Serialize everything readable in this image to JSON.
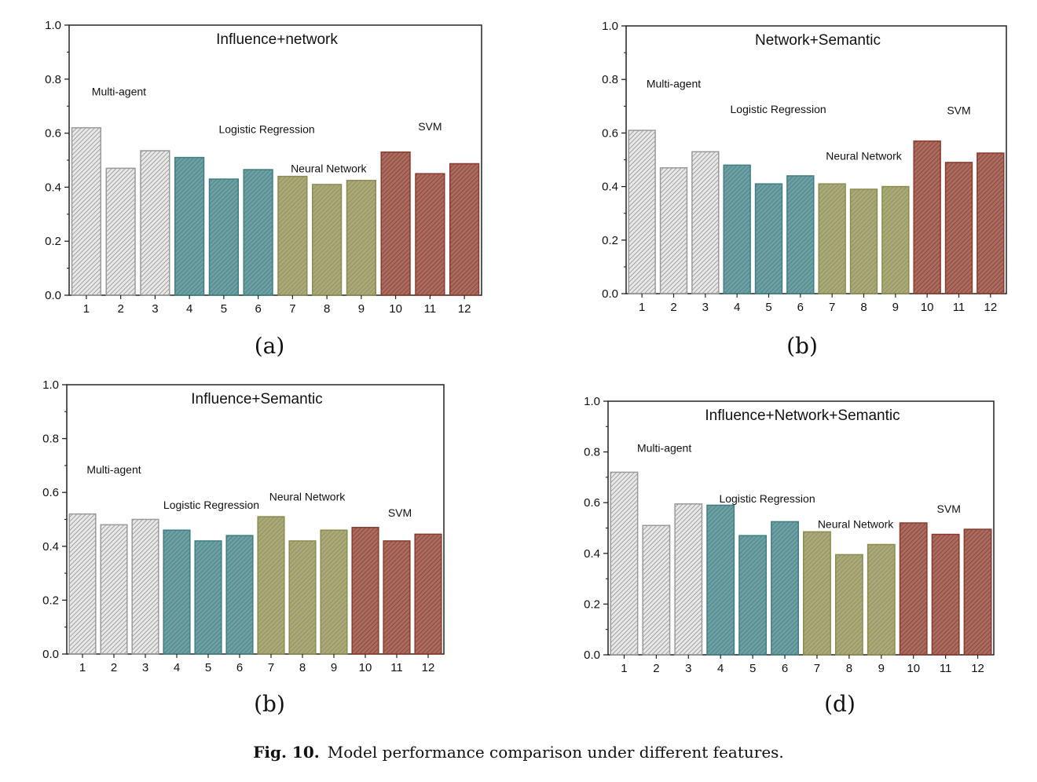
{
  "colors": {
    "Multi-agent": "#bdbdbd",
    "Logistic Regression": "#3e7f83",
    "Neural Network": "#8c8c4e",
    "SVM": "#8b3a2c"
  },
  "caption": {
    "label": "Fig. 10.",
    "text": "Model performance comparison under different features."
  },
  "chart_data": [
    {
      "type": "bar",
      "title": "Influence+network",
      "panel_label": "(a)",
      "categories": [
        "1",
        "2",
        "3",
        "4",
        "5",
        "6",
        "7",
        "8",
        "9",
        "10",
        "11",
        "12"
      ],
      "values": [
        0.62,
        0.47,
        0.535,
        0.51,
        0.43,
        0.465,
        0.44,
        0.41,
        0.425,
        0.53,
        0.45,
        0.487
      ],
      "groups": [
        "Multi-agent",
        "Multi-agent",
        "Multi-agent",
        "Logistic Regression",
        "Logistic Regression",
        "Logistic Regression",
        "Neural Network",
        "Neural Network",
        "Neural Network",
        "SVM",
        "SVM",
        "SVM"
      ],
      "ylim": [
        0,
        1.0
      ],
      "yticks": [
        "0.0",
        "0.2",
        "0.4",
        "0.6",
        "0.8",
        "1.0"
      ],
      "annotations": [
        {
          "text": "Multi-agent",
          "x": 1.95,
          "y": 0.74
        },
        {
          "text": "Logistic Regression",
          "x": 6.25,
          "y": 0.6
        },
        {
          "text": "Neural Network",
          "x": 8.05,
          "y": 0.455
        },
        {
          "text": "SVM",
          "x": 11.0,
          "y": 0.61
        }
      ]
    },
    {
      "type": "bar",
      "title": "Network+Semantic",
      "panel_label": "(b)",
      "categories": [
        "1",
        "2",
        "3",
        "4",
        "5",
        "6",
        "7",
        "8",
        "9",
        "10",
        "11",
        "12"
      ],
      "values": [
        0.61,
        0.47,
        0.53,
        0.48,
        0.41,
        0.44,
        0.41,
        0.39,
        0.4,
        0.57,
        0.49,
        0.525
      ],
      "groups": [
        "Multi-agent",
        "Multi-agent",
        "Multi-agent",
        "Logistic Regression",
        "Logistic Regression",
        "Logistic Regression",
        "Neural Network",
        "Neural Network",
        "Neural Network",
        "SVM",
        "SVM",
        "SVM"
      ],
      "ylim": [
        0,
        1.0
      ],
      "yticks": [
        "0.0",
        "0.2",
        "0.4",
        "0.6",
        "0.8",
        "1.0"
      ],
      "annotations": [
        {
          "text": "Multi-agent",
          "x": 2.0,
          "y": 0.77
        },
        {
          "text": "Logistic Regression",
          "x": 5.3,
          "y": 0.675
        },
        {
          "text": "Neural Network",
          "x": 8.0,
          "y": 0.5
        },
        {
          "text": "SVM",
          "x": 11.0,
          "y": 0.67
        }
      ]
    },
    {
      "type": "bar",
      "title": "Influence+Semantic",
      "panel_label": "(b)",
      "categories": [
        "1",
        "2",
        "3",
        "4",
        "5",
        "6",
        "7",
        "8",
        "9",
        "10",
        "11",
        "12"
      ],
      "values": [
        0.52,
        0.48,
        0.5,
        0.46,
        0.42,
        0.44,
        0.51,
        0.42,
        0.46,
        0.47,
        0.42,
        0.445
      ],
      "groups": [
        "Multi-agent",
        "Multi-agent",
        "Multi-agent",
        "Logistic Regression",
        "Logistic Regression",
        "Logistic Regression",
        "Neural Network",
        "Neural Network",
        "Neural Network",
        "SVM",
        "SVM",
        "SVM"
      ],
      "ylim": [
        0,
        1.0
      ],
      "yticks": [
        "0.0",
        "0.2",
        "0.4",
        "0.6",
        "0.8",
        "1.0"
      ],
      "annotations": [
        {
          "text": "Multi-agent",
          "x": 2.0,
          "y": 0.67
        },
        {
          "text": "Logistic Regression",
          "x": 5.1,
          "y": 0.54
        },
        {
          "text": "Neural Network",
          "x": 8.15,
          "y": 0.57
        },
        {
          "text": "SVM",
          "x": 11.1,
          "y": 0.51
        }
      ]
    },
    {
      "type": "bar",
      "title": "Influence+Network+Semantic",
      "panel_label": "(d)",
      "categories": [
        "1",
        "2",
        "3",
        "4",
        "5",
        "6",
        "7",
        "8",
        "9",
        "10",
        "11",
        "12"
      ],
      "values": [
        0.72,
        0.51,
        0.595,
        0.59,
        0.47,
        0.525,
        0.485,
        0.395,
        0.435,
        0.52,
        0.475,
        0.495
      ],
      "groups": [
        "Multi-agent",
        "Multi-agent",
        "Multi-agent",
        "Logistic Regression",
        "Logistic Regression",
        "Logistic Regression",
        "Neural Network",
        "Neural Network",
        "Neural Network",
        "SVM",
        "SVM",
        "SVM"
      ],
      "ylim": [
        0,
        1.0
      ],
      "yticks": [
        "0.0",
        "0.2",
        "0.4",
        "0.6",
        "0.8",
        "1.0"
      ],
      "annotations": [
        {
          "text": "Multi-agent",
          "x": 2.25,
          "y": 0.8
        },
        {
          "text": "Logistic Regression",
          "x": 5.45,
          "y": 0.6
        },
        {
          "text": "Neural Network",
          "x": 8.2,
          "y": 0.5
        },
        {
          "text": "SVM",
          "x": 11.1,
          "y": 0.56
        }
      ]
    }
  ]
}
